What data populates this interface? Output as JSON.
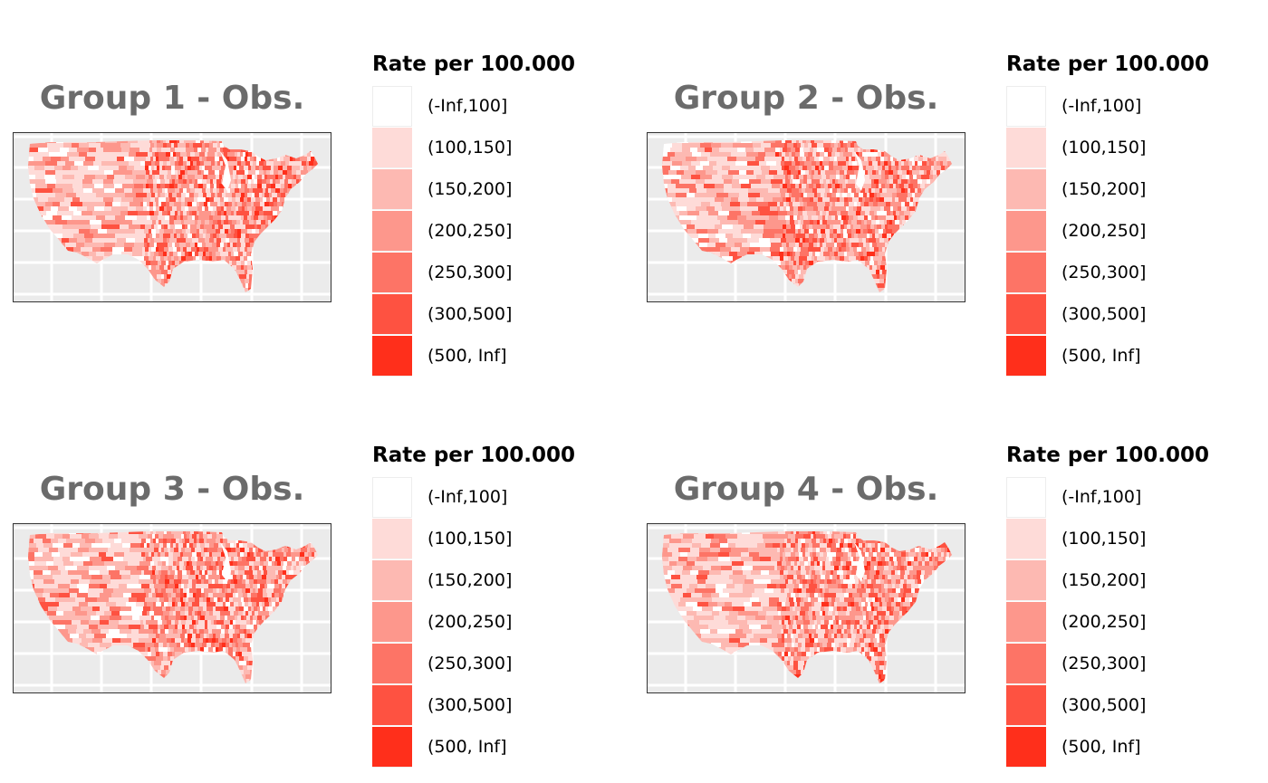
{
  "legend": {
    "title": "Rate per 100.000",
    "items": [
      {
        "label": "(-Inf,100]",
        "color": "#FFFFFF"
      },
      {
        "label": "(100,150]",
        "color": "#FEDBD8"
      },
      {
        "label": "(150,200]",
        "color": "#FDB9B2"
      },
      {
        "label": "(200,250]",
        "color": "#FD978C"
      },
      {
        "label": "(250,300]",
        "color": "#FD7466"
      },
      {
        "label": "(300,500]",
        "color": "#FE5241"
      },
      {
        "label": "(500, Inf]",
        "color": "#FF2F1B"
      }
    ]
  },
  "panels": [
    {
      "title": "Group 1 - Obs."
    },
    {
      "title": "Group 2 - Obs."
    },
    {
      "title": "Group 3 - Obs."
    },
    {
      "title": "Group 4 - Obs."
    }
  ]
}
